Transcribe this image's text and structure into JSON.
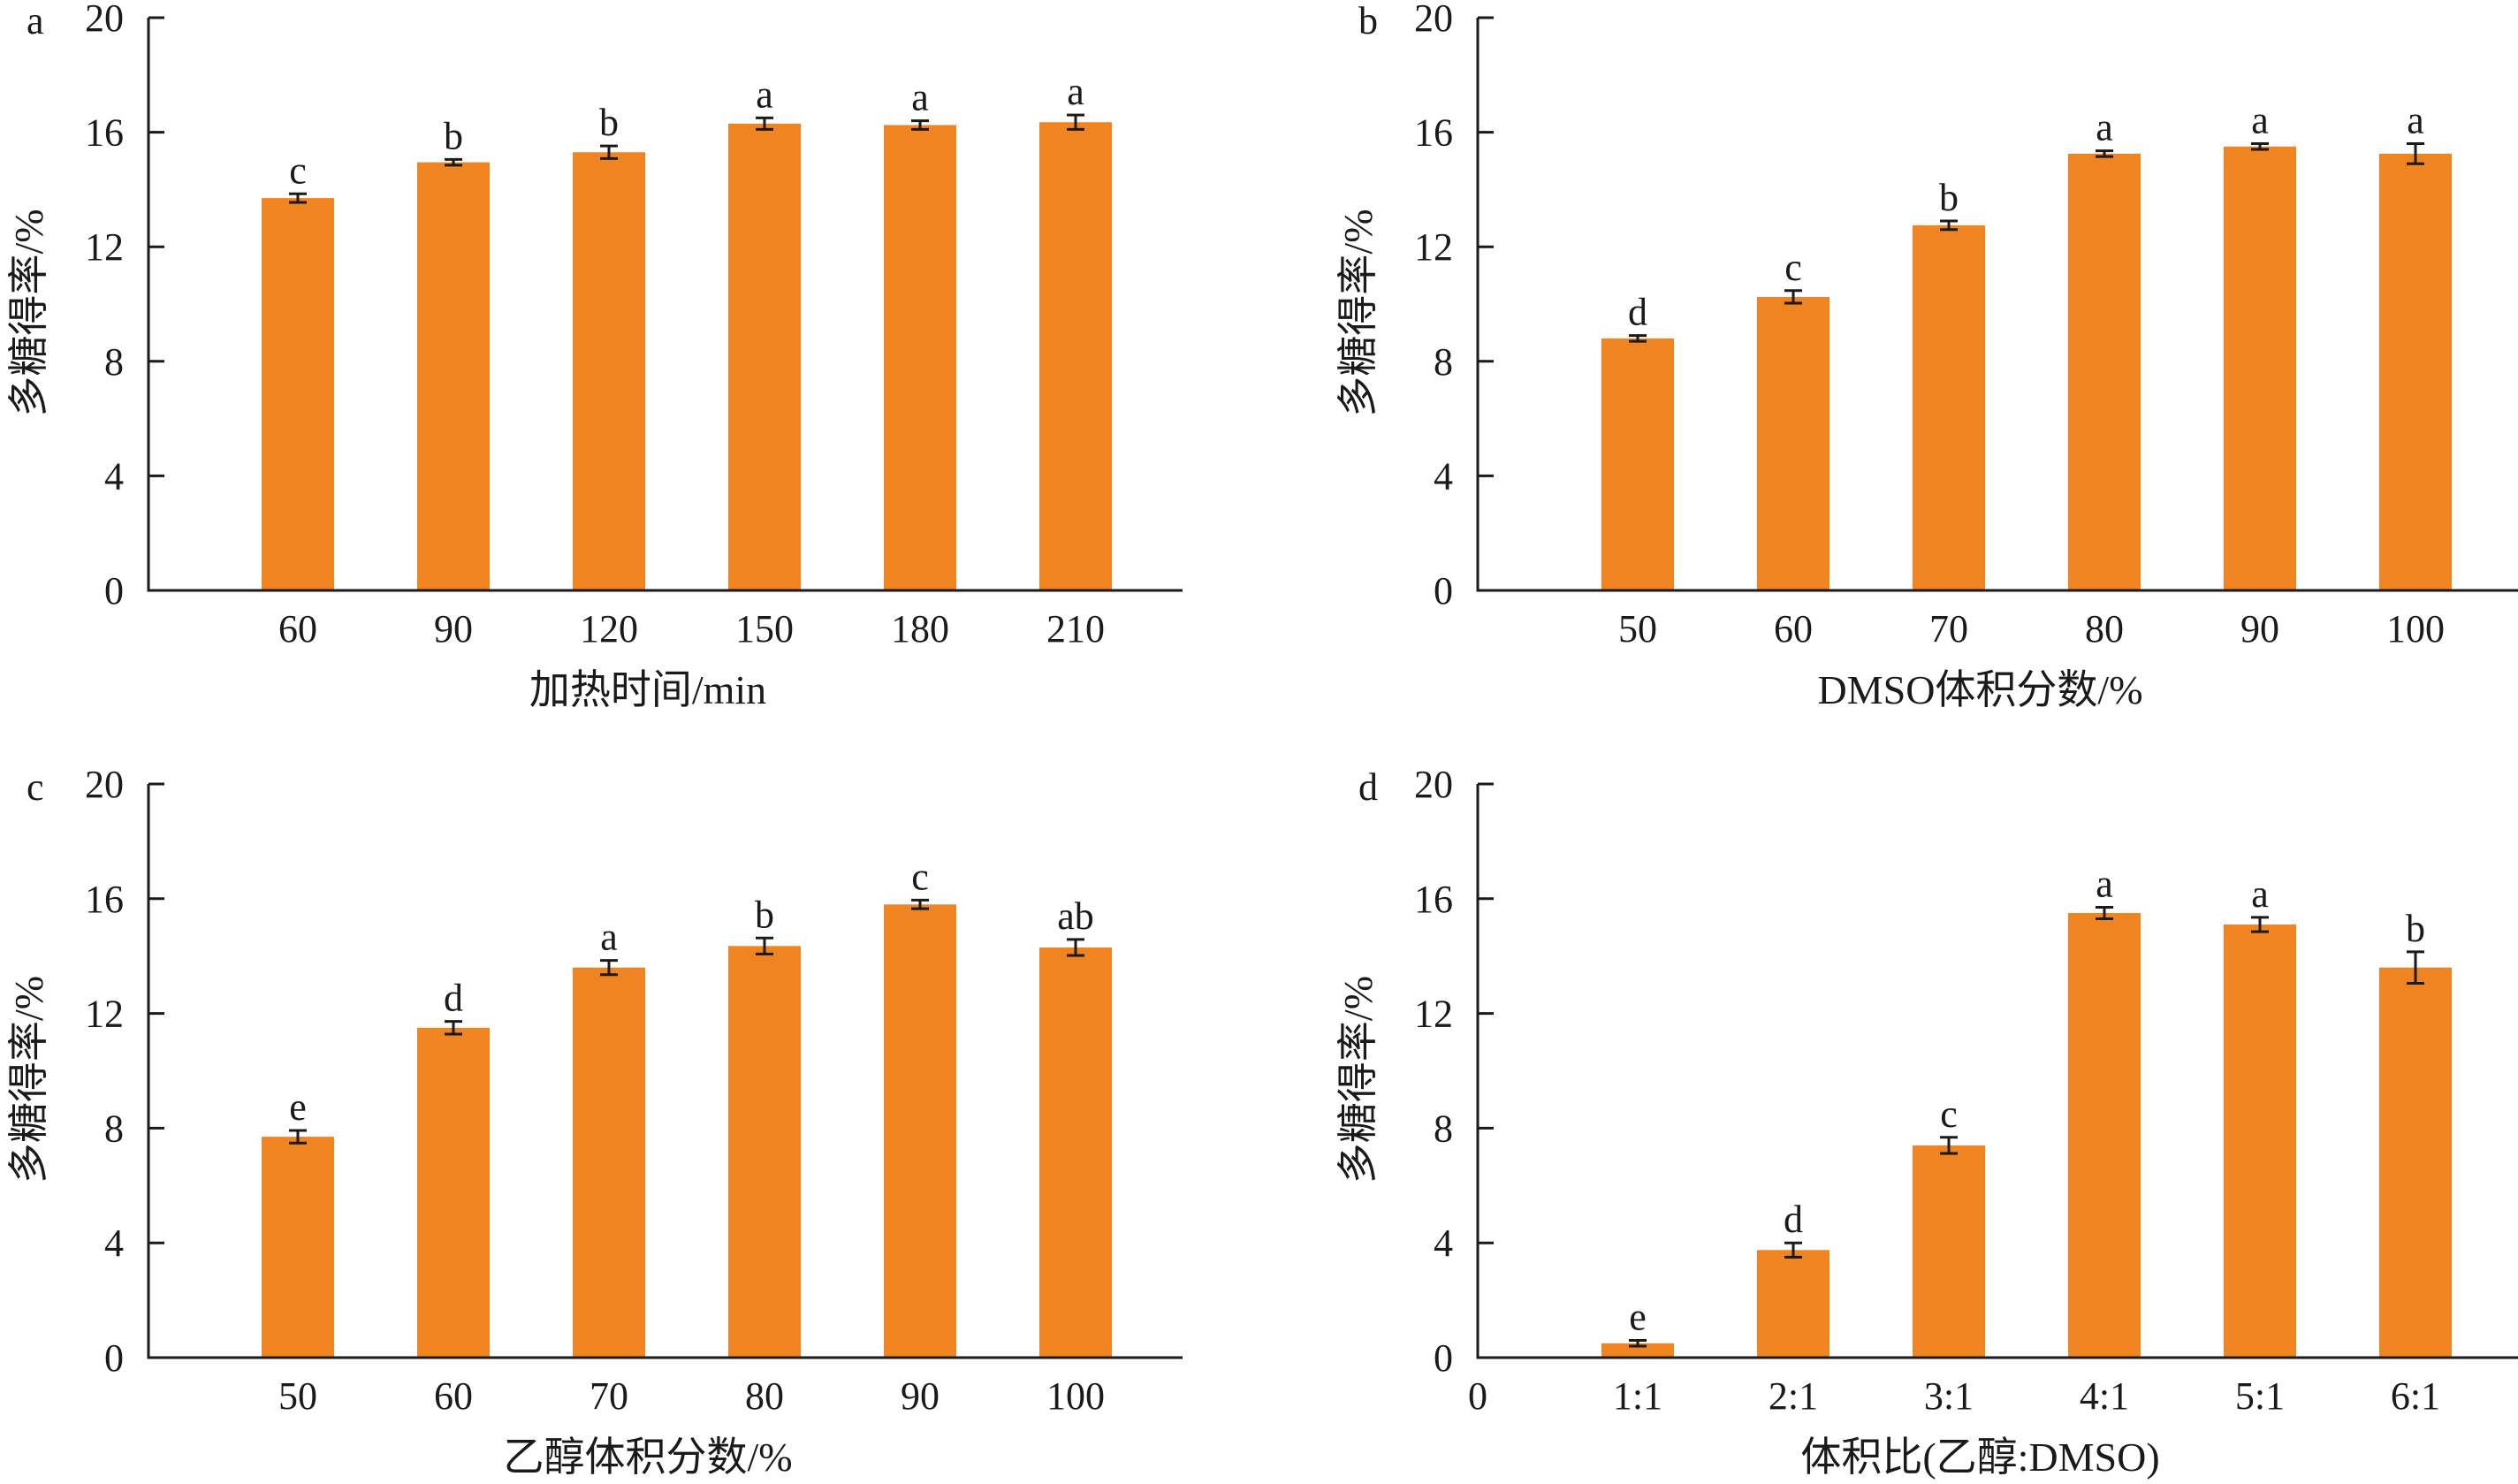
{
  "colors": {
    "bar": "#ef8421",
    "axis": "#1a1a1a",
    "text": "#1a1a1a"
  },
  "chart_data": [
    {
      "panel": "a",
      "type": "bar",
      "categories": [
        "60",
        "90",
        "120",
        "150",
        "180",
        "210"
      ],
      "values": [
        13.7,
        14.95,
        15.3,
        16.3,
        16.25,
        16.35
      ],
      "errors": [
        0.15,
        0.1,
        0.22,
        0.2,
        0.15,
        0.25
      ],
      "letters": [
        "c",
        "b",
        "b",
        "a",
        "a",
        "a"
      ],
      "xlabel": "加热时间/min",
      "ylabel": "多糖得率/%",
      "ylim": [
        0,
        20
      ],
      "yticks": [
        "0",
        "4",
        "8",
        "12",
        "16",
        "20"
      ],
      "origin_label": ""
    },
    {
      "panel": "b",
      "type": "bar",
      "categories": [
        "50",
        "60",
        "70",
        "80",
        "90",
        "100"
      ],
      "values": [
        8.8,
        10.25,
        12.75,
        15.25,
        15.5,
        15.25
      ],
      "errors": [
        0.1,
        0.22,
        0.15,
        0.1,
        0.1,
        0.35
      ],
      "letters": [
        "d",
        "c",
        "b",
        "a",
        "a",
        "a"
      ],
      "xlabel": "DMSO体积分数/%",
      "ylabel": "多糖得率/%",
      "ylim": [
        0,
        20
      ],
      "yticks": [
        "0",
        "4",
        "8",
        "12",
        "16",
        "20"
      ],
      "origin_label": ""
    },
    {
      "panel": "c",
      "type": "bar",
      "categories": [
        "50",
        "60",
        "70",
        "80",
        "90",
        "100"
      ],
      "values": [
        7.7,
        11.5,
        13.6,
        14.35,
        15.8,
        14.3
      ],
      "errors": [
        0.22,
        0.22,
        0.25,
        0.28,
        0.15,
        0.28
      ],
      "letters": [
        "e",
        "d",
        "a",
        "b",
        "c",
        "ab"
      ],
      "xlabel": "乙醇体积分数/%",
      "ylabel": "多糖得率/%",
      "ylim": [
        0,
        20
      ],
      "yticks": [
        "0",
        "4",
        "8",
        "12",
        "16",
        "20"
      ],
      "origin_label": ""
    },
    {
      "panel": "d",
      "type": "bar",
      "categories": [
        "1:1",
        "2:1",
        "3:1",
        "4:1",
        "5:1",
        "6:1"
      ],
      "values": [
        0.5,
        3.75,
        7.4,
        15.5,
        15.1,
        13.6
      ],
      "errors": [
        0.1,
        0.25,
        0.28,
        0.2,
        0.25,
        0.55
      ],
      "letters": [
        "e",
        "d",
        "c",
        "a",
        "a",
        "b"
      ],
      "xlabel": "体积比(乙醇:DMSO)",
      "ylabel": "多糖得率/%",
      "ylim": [
        0,
        20
      ],
      "yticks": [
        "0",
        "4",
        "8",
        "12",
        "16",
        "20"
      ],
      "origin_label": "0"
    }
  ]
}
